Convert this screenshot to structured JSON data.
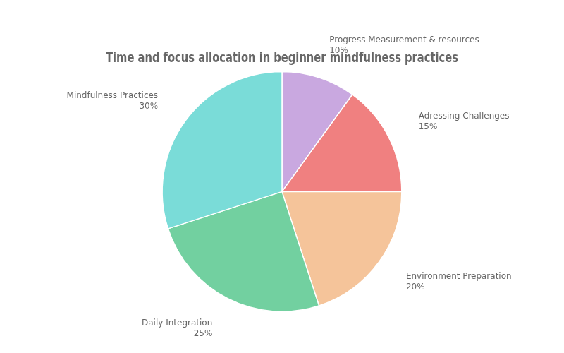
{
  "chart_data": {
    "type": "pie",
    "title": "Time and focus allocation in beginner mindfulness practices",
    "categories": [
      "Progress Measurement & resources",
      "Adressing Challenges",
      "Environment Preparation",
      "Daily Integration",
      "Mindfulness Practices"
    ],
    "values": [
      10,
      15,
      20,
      25,
      30
    ],
    "value_labels": [
      "10%",
      "15%",
      "20%",
      "25%",
      "30%"
    ],
    "colors": [
      "#c9a8e0",
      "#f08080",
      "#f5c49a",
      "#72d0a0",
      "#7adcd8"
    ],
    "data_labels": true
  }
}
